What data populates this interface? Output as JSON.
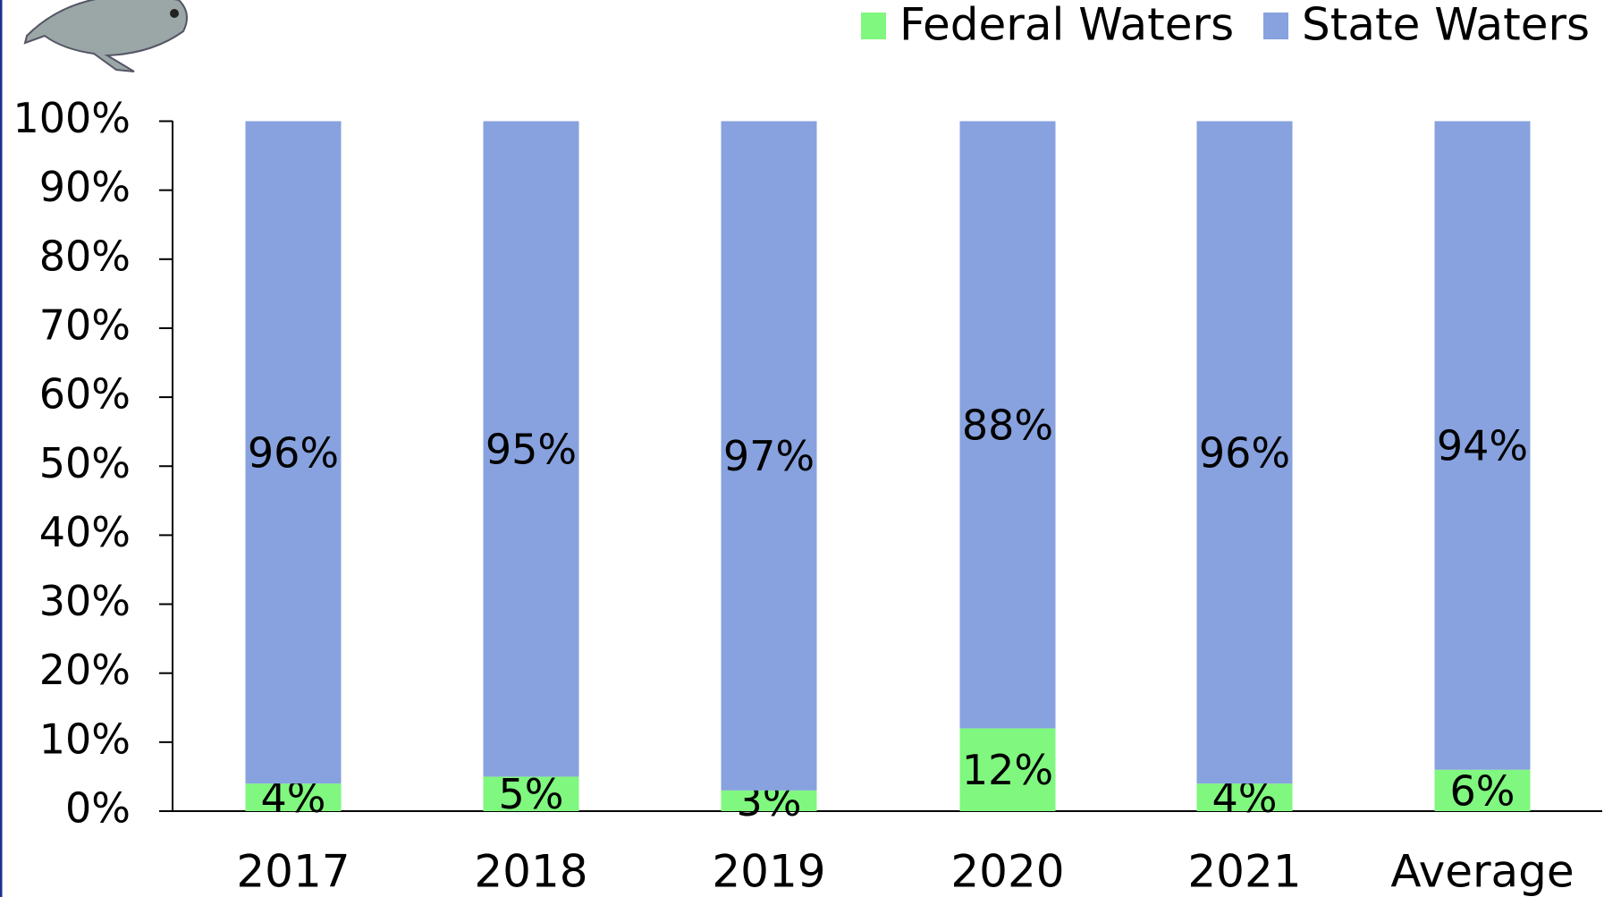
{
  "chart_data": {
    "type": "stacked_bar",
    "categories": [
      "2017",
      "2018",
      "2019",
      "2020",
      "2021",
      "Average"
    ],
    "series": [
      {
        "name": "Federal Waters",
        "color": "#80f77f",
        "values": [
          4,
          5,
          3,
          12,
          4,
          6
        ],
        "value_labels": [
          "4%",
          "5%",
          "3%",
          "12%",
          "4%",
          "6%"
        ]
      },
      {
        "name": "State Waters",
        "color": "#87a2de",
        "values": [
          96,
          95,
          97,
          88,
          96,
          94
        ],
        "value_labels": [
          "96%",
          "95%",
          "97%",
          "88%",
          "96%",
          "94%"
        ]
      }
    ],
    "ylim": [
      0,
      100
    ],
    "yticks": [
      {
        "value": 0,
        "label": "0%"
      },
      {
        "value": 10,
        "label": "10%"
      },
      {
        "value": 20,
        "label": "20%"
      },
      {
        "value": 30,
        "label": "30%"
      },
      {
        "value": 40,
        "label": "40%"
      },
      {
        "value": 50,
        "label": "50%"
      },
      {
        "value": 60,
        "label": "60%"
      },
      {
        "value": 70,
        "label": "70%"
      },
      {
        "value": 80,
        "label": "80%"
      },
      {
        "value": 90,
        "label": "90%"
      },
      {
        "value": 100,
        "label": "100%"
      }
    ],
    "legend": "top-right"
  }
}
